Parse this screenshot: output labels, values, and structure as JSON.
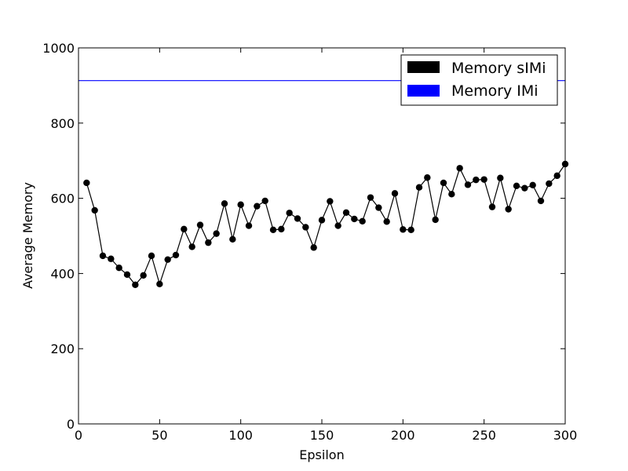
{
  "chart_data": {
    "type": "line",
    "xlabel": "Epsilon",
    "ylabel": "Average Memory",
    "xlim": [
      0,
      300
    ],
    "ylim": [
      0,
      1000
    ],
    "xticks": [
      0,
      50,
      100,
      150,
      200,
      250,
      300
    ],
    "yticks": [
      0,
      200,
      400,
      600,
      800,
      1000
    ],
    "grid": false,
    "legend_position": "top-right",
    "series": [
      {
        "name": "Memory sIMi",
        "color": "#000000",
        "marker": "circle",
        "x": [
          5,
          10,
          15,
          20,
          25,
          30,
          35,
          40,
          45,
          50,
          55,
          60,
          65,
          70,
          75,
          80,
          85,
          90,
          95,
          100,
          105,
          110,
          115,
          120,
          125,
          130,
          135,
          140,
          145,
          150,
          155,
          160,
          165,
          170,
          175,
          180,
          185,
          190,
          195,
          200,
          205,
          210,
          215,
          220,
          225,
          230,
          235,
          240,
          245,
          250,
          255,
          260,
          265,
          270,
          275,
          280,
          285,
          290,
          295,
          300
        ],
        "values": [
          641,
          568,
          447,
          439,
          415,
          397,
          370,
          395,
          447,
          372,
          437,
          449,
          518,
          471,
          529,
          482,
          506,
          586,
          491,
          583,
          527,
          579,
          593,
          516,
          518,
          561,
          546,
          523,
          469,
          542,
          592,
          527,
          562,
          545,
          539,
          602,
          575,
          538,
          613,
          517,
          516,
          629,
          655,
          543,
          641,
          611,
          680,
          636,
          649,
          650,
          577,
          654,
          571,
          633,
          627,
          635,
          593,
          639,
          660,
          691
        ]
      },
      {
        "name": "Memory IMi",
        "color": "#0000ff",
        "marker": "none",
        "x": [
          0,
          300
        ],
        "values": [
          913,
          913
        ]
      }
    ]
  }
}
